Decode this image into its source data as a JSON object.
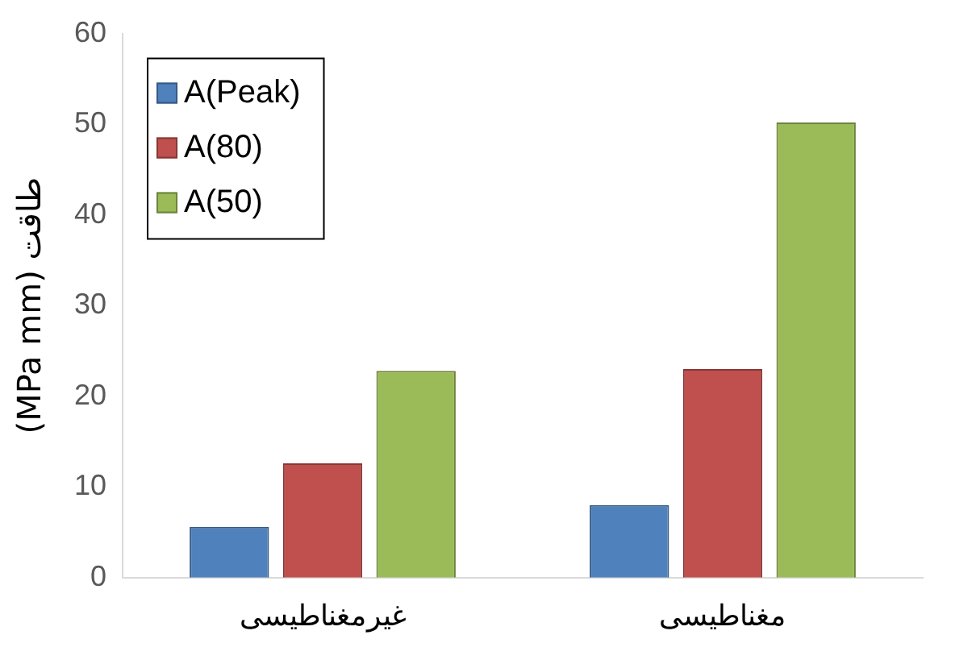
{
  "chart_data": {
    "type": "bar",
    "ylabel": "(MPa mm) طاقت",
    "categories": [
      "غیرمغناطیسی",
      "مغناطیسی"
    ],
    "series": [
      {
        "name": "A(Peak)",
        "color": "#4f81bd",
        "values": [
          5.6,
          8.0
        ]
      },
      {
        "name": "A(80)",
        "color": "#c0504d",
        "values": [
          12.6,
          23.0
        ]
      },
      {
        "name": "A(50)",
        "color": "#9bbb59",
        "values": [
          22.8,
          50.2
        ]
      }
    ],
    "ylim": [
      0,
      60
    ],
    "yticks": [
      0,
      10,
      20,
      30,
      40,
      50,
      60
    ],
    "grid": false,
    "legend": "top left"
  }
}
